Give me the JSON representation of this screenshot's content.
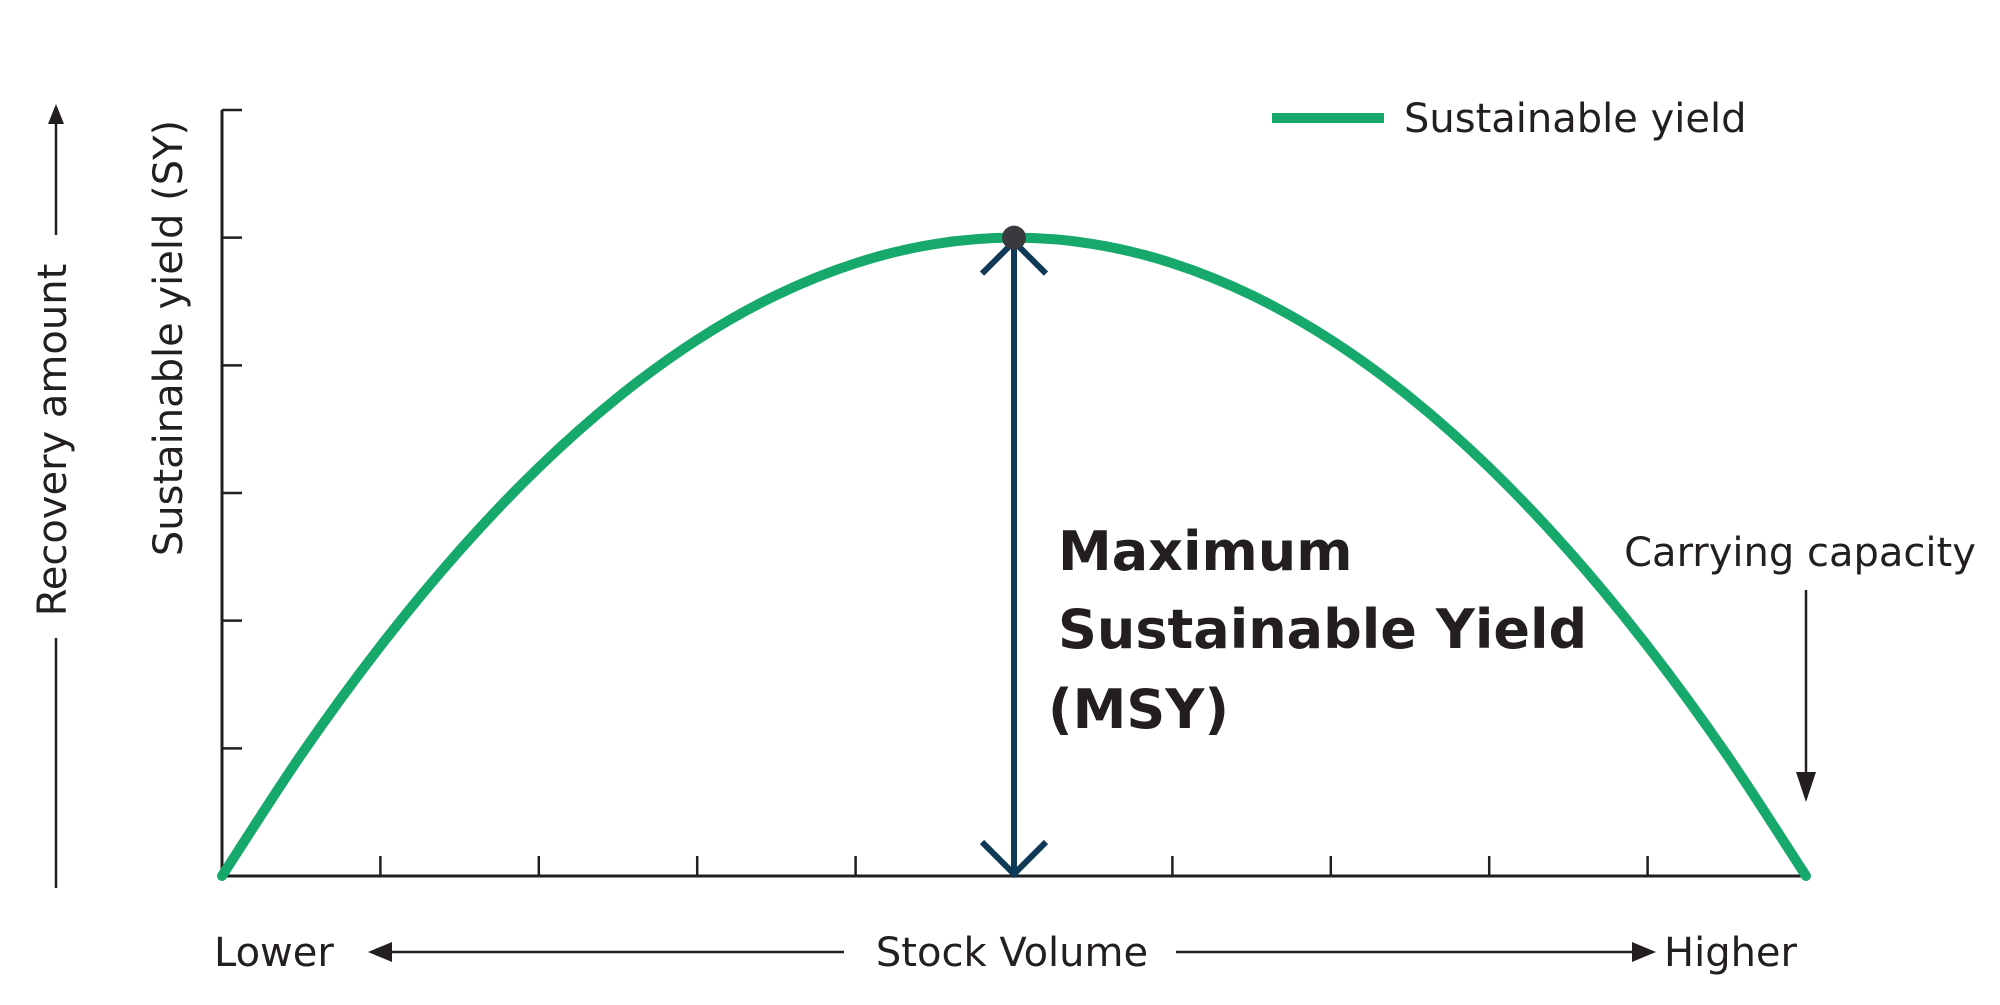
{
  "chart_data": {
    "type": "line",
    "title": "",
    "ylabel": "Sustainable yield (SY)",
    "y_outer_label": "Recovery amount",
    "xlabel": "Stock Volume",
    "x_low_label": "Lower",
    "x_high_label": "Higher",
    "xlim": [
      0,
      10
    ],
    "ylim": [
      0,
      6
    ],
    "x_tick_count": 10,
    "y_tick_count": 6,
    "series": [
      {
        "name": "Sustainable yield",
        "color": "#16a96b",
        "x": [
          0,
          0.5,
          1,
          1.5,
          2,
          2.5,
          3,
          3.5,
          4,
          4.5,
          5,
          5.5,
          6,
          6.5,
          7,
          7.5,
          8,
          8.5,
          9,
          9.5,
          10
        ],
        "values": [
          0,
          0.95,
          1.8,
          2.55,
          3.2,
          3.75,
          4.2,
          4.55,
          4.8,
          4.95,
          5,
          4.95,
          4.8,
          4.55,
          4.2,
          3.75,
          3.2,
          2.55,
          1.8,
          0.95,
          0
        ]
      }
    ],
    "annotations": {
      "msy": {
        "x": 5,
        "y": 5,
        "lines": [
          "Maximum",
          "Sustainable Yield",
          "(MSY)"
        ],
        "color": "#0f3a57",
        "point_color": "#3a3a3e"
      },
      "carrying_capacity": {
        "x": 10,
        "label": "Carrying capacity"
      }
    },
    "legend_position": "top-right",
    "grid": false
  }
}
